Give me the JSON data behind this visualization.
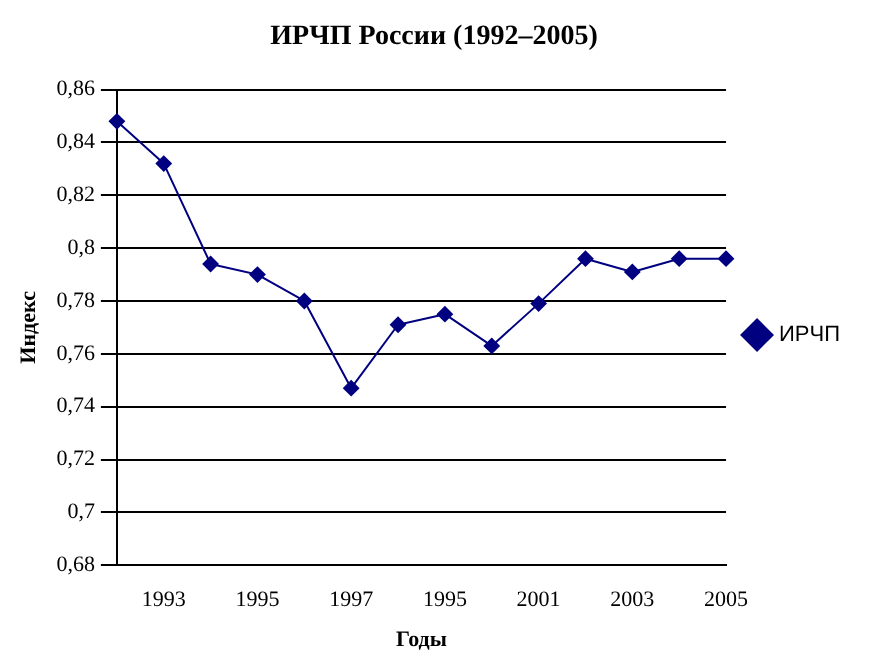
{
  "chart_data": {
    "type": "line",
    "title": "ИРЧП России (1992–2005)",
    "xlabel": "Годы",
    "ylabel": "Индекс",
    "categories": [
      null,
      "1993",
      null,
      "1995",
      null,
      "1997",
      null,
      "1995",
      null,
      "2001",
      null,
      "2003",
      null,
      "2005"
    ],
    "series": [
      {
        "name": "ИРЧП",
        "color": "#000080",
        "values": [
          0.848,
          0.832,
          0.794,
          0.79,
          0.78,
          0.747,
          0.771,
          0.775,
          0.763,
          0.779,
          0.796,
          0.791,
          0.796,
          0.796
        ]
      }
    ],
    "ylim": [
      0.68,
      0.86
    ],
    "yticks": [
      {
        "value": 0.68,
        "label": "0,68"
      },
      {
        "value": 0.7,
        "label": "0,7"
      },
      {
        "value": 0.72,
        "label": "0,72"
      },
      {
        "value": 0.74,
        "label": "0,74"
      },
      {
        "value": 0.76,
        "label": "0,76"
      },
      {
        "value": 0.78,
        "label": "0,78"
      },
      {
        "value": 0.8,
        "label": "0,8"
      },
      {
        "value": 0.82,
        "label": "0,82"
      },
      {
        "value": 0.84,
        "label": "0,84"
      },
      {
        "value": 0.86,
        "label": "0,86"
      }
    ],
    "grid": "y",
    "legend": "right",
    "marker": "diamond",
    "line_style": "solid"
  }
}
